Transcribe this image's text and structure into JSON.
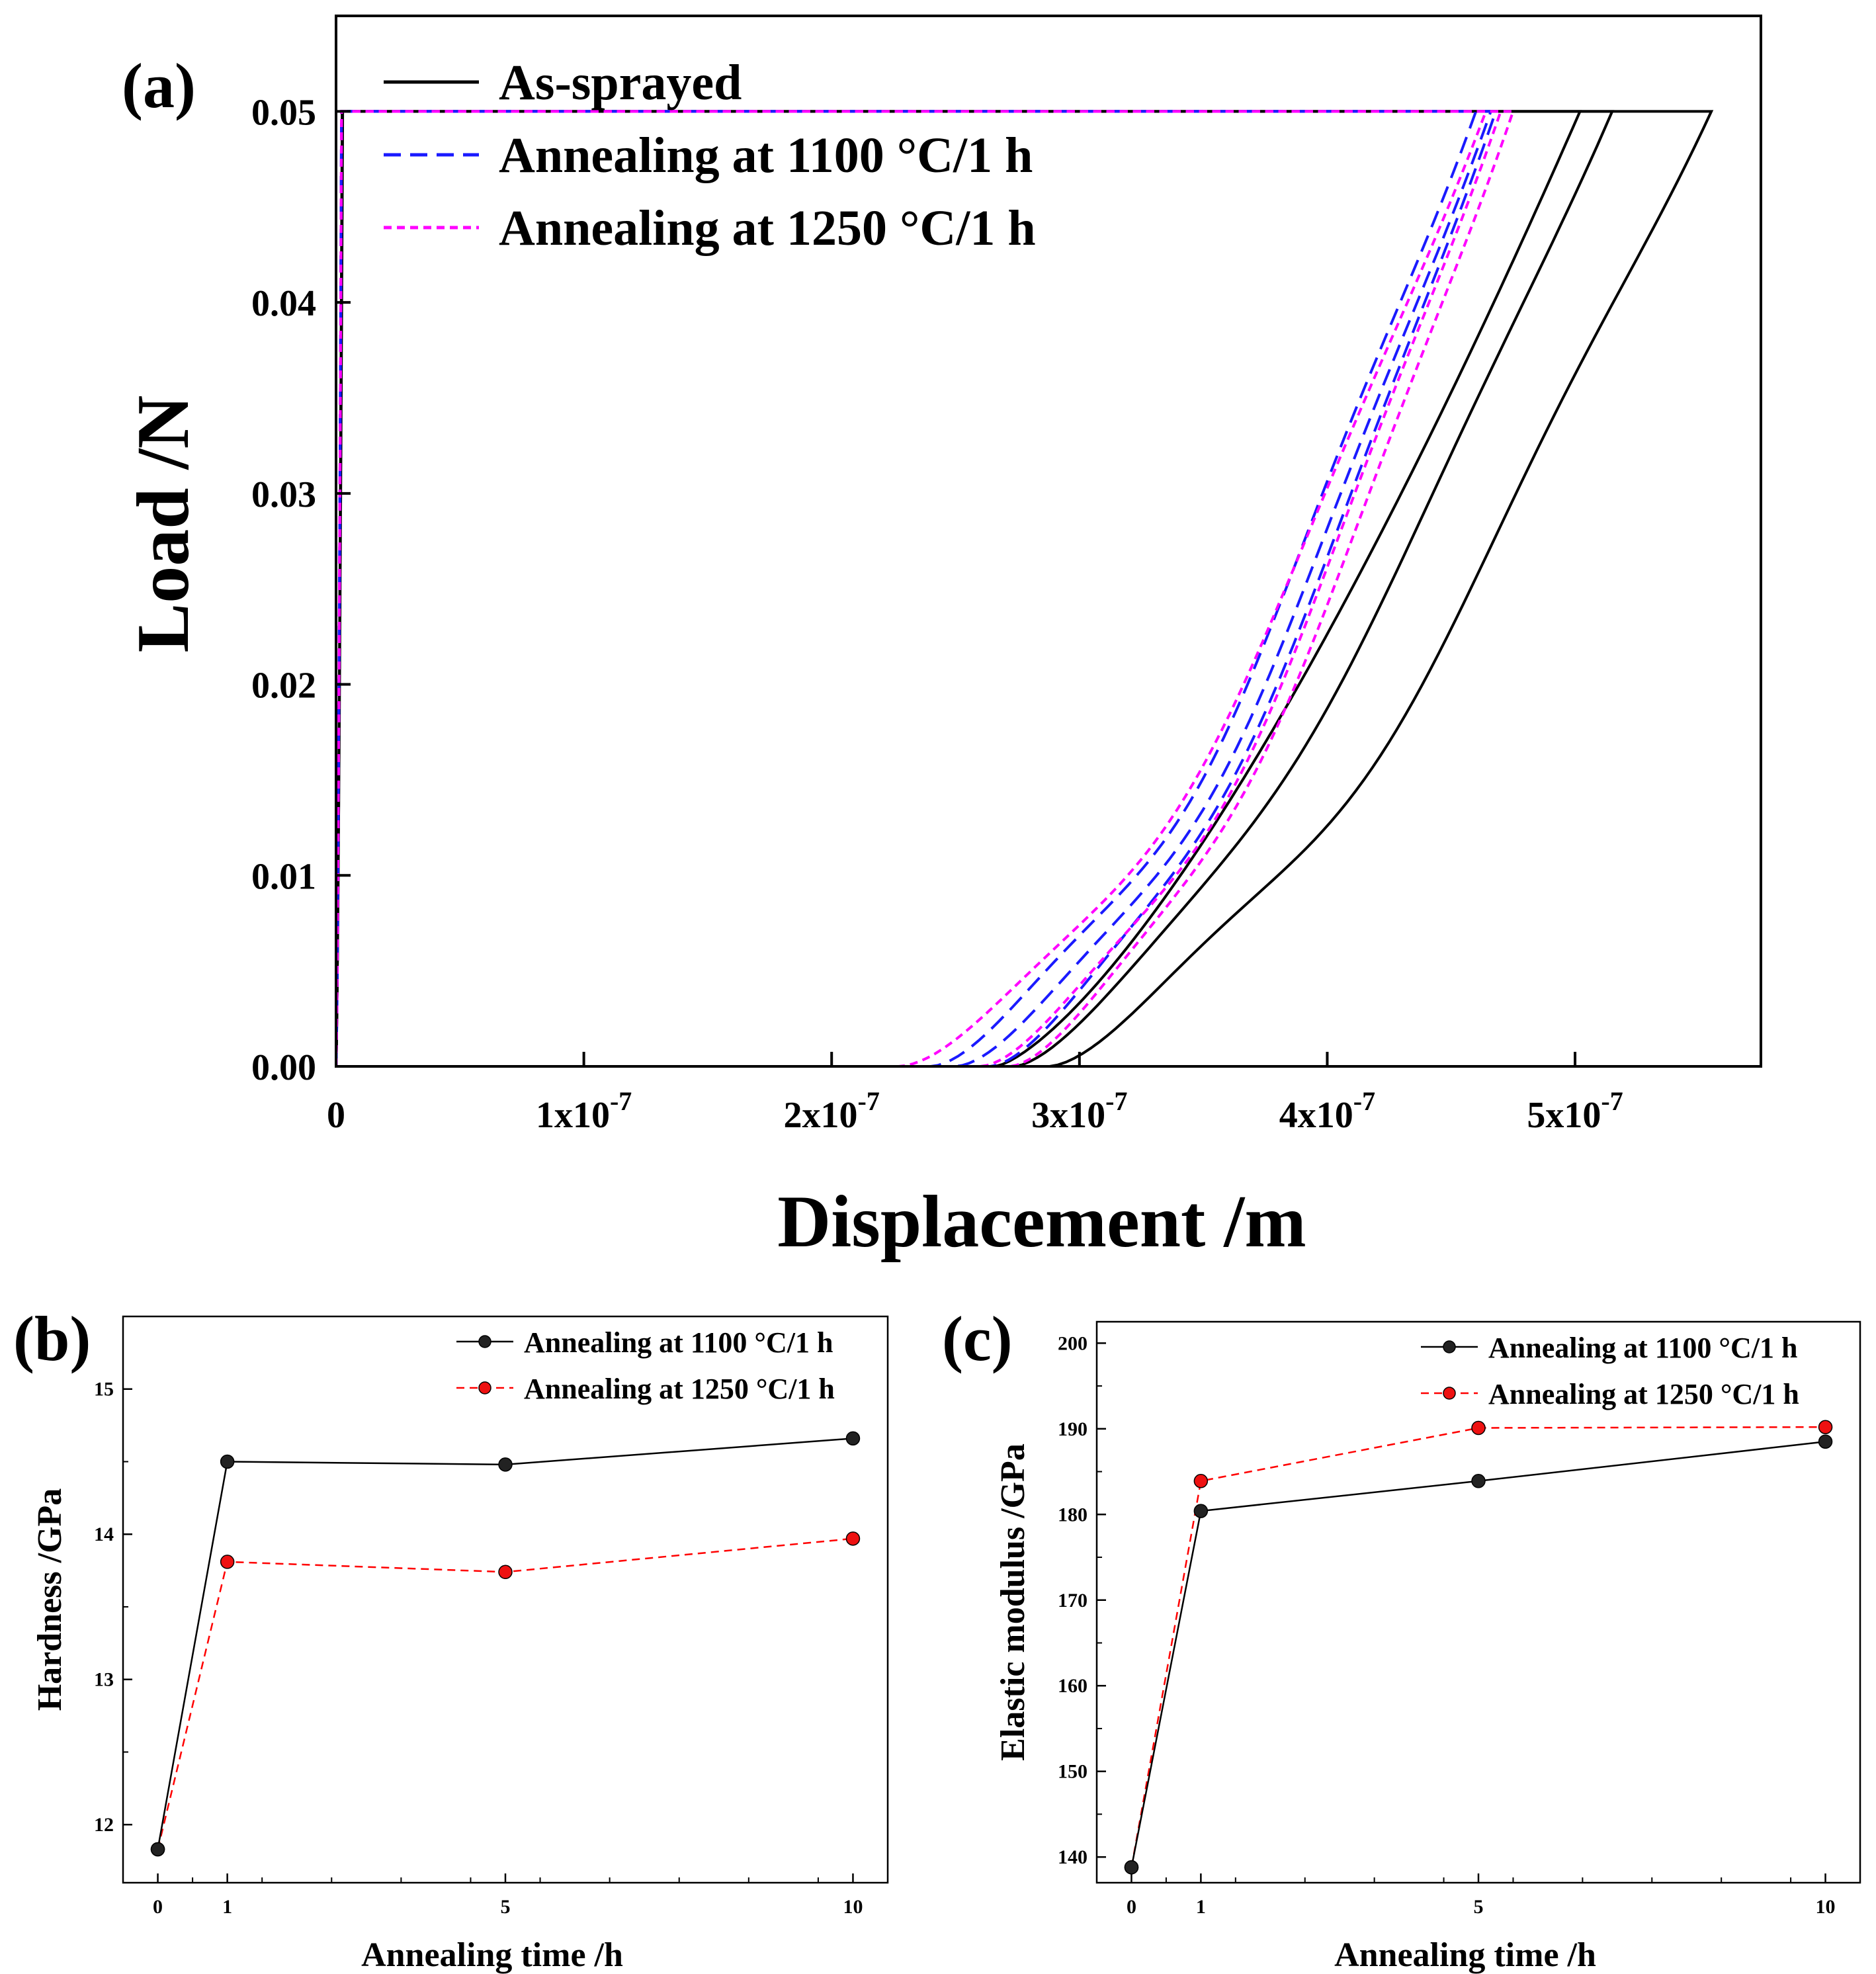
{
  "figure": {
    "panel_labels": [
      "(a)",
      "(b)",
      "(c)"
    ]
  },
  "chart_data": [
    {
      "id": "a",
      "type": "line",
      "panel_label": "(a)",
      "title": "",
      "xlabel": "Displacement  /m",
      "ylabel": "Load  /N",
      "xlim": [
        0,
        5.75e-07
      ],
      "ylim": [
        0,
        0.055
      ],
      "x_ticks": [
        {
          "value": 0,
          "label": "0"
        },
        {
          "value": 1e-07,
          "label": "1x10",
          "exp": "-7"
        },
        {
          "value": 2e-07,
          "label": "2x10",
          "exp": "-7"
        },
        {
          "value": 3e-07,
          "label": "3x10",
          "exp": "-7"
        },
        {
          "value": 4e-07,
          "label": "4x10",
          "exp": "-7"
        },
        {
          "value": 5e-07,
          "label": "5x10",
          "exp": "-7"
        }
      ],
      "y_ticks": [
        {
          "value": 0.0,
          "label": "0.00"
        },
        {
          "value": 0.01,
          "label": "0.01"
        },
        {
          "value": 0.02,
          "label": "0.02"
        },
        {
          "value": 0.03,
          "label": "0.03"
        },
        {
          "value": 0.04,
          "label": "0.04"
        },
        {
          "value": 0.05,
          "label": "0.05"
        }
      ],
      "legend": [
        {
          "label": "As-sprayed",
          "color": "#000000",
          "style": "solid"
        },
        {
          "label": "Annealing at 1100 °C/1 h",
          "color": "#1a1aff",
          "style": "dashed"
        },
        {
          "label": "Annealing at 1250 °C/1 h",
          "color": "#ff00ff",
          "style": "dotted"
        }
      ],
      "legend_position": "top-left",
      "curve_groups": [
        {
          "name": "As-sprayed",
          "color": "#000000",
          "style": "solid",
          "curves": [
            {
              "hmax": 5.55e-07,
              "k": 162000000000,
              "p": 1.46,
              "hf": 2.88e-07,
              "m": 1.5,
              "kink": 0.35
            },
            {
              "hmax": 5.15e-07,
              "k": 179000000000,
              "p": 1.46,
              "hf": 2.74e-07,
              "m": 1.45,
              "kink": 0.2
            },
            {
              "hmax": 5.02e-07,
              "k": 186000000000,
              "p": 1.46,
              "hf": 2.66e-07,
              "m": 1.4,
              "kink": 0.0
            }
          ]
        },
        {
          "name": "Annealing at 1100 °C/1 h",
          "color": "#1a1aff",
          "style": "dashed",
          "curves": [
            {
              "hmax": 4.6e-07,
              "k": 222000000000,
              "p": 1.46,
              "hf": 2.4e-07,
              "m": 1.6,
              "kink": 0.35
            },
            {
              "hmax": 4.66e-07,
              "k": 218000000000,
              "p": 1.46,
              "hf": 2.5e-07,
              "m": 1.6,
              "kink": 0.3
            },
            {
              "hmax": 4.68e-07,
              "k": 216000000000,
              "p": 1.46,
              "hf": 2.64e-07,
              "m": 1.55,
              "kink": 0.25
            }
          ]
        },
        {
          "name": "Annealing at 1250 °C/1 h",
          "color": "#ff00ff",
          "style": "dotted",
          "curves": [
            {
              "hmax": 4.64e-07,
              "k": 220000000000,
              "p": 1.46,
              "hf": 2.27e-07,
              "m": 1.65,
              "kink": 0.3
            },
            {
              "hmax": 4.7e-07,
              "k": 214000000000,
              "p": 1.46,
              "hf": 2.6e-07,
              "m": 1.6,
              "kink": 0.3
            },
            {
              "hmax": 4.75e-07,
              "k": 210000000000,
              "p": 1.46,
              "hf": 2.72e-07,
              "m": 1.55,
              "kink": 0.25
            }
          ]
        }
      ],
      "pmax": 0.05
    },
    {
      "id": "b",
      "type": "line",
      "panel_label": "(b)",
      "title": "",
      "xlabel": "Annealing time  /h",
      "ylabel": "Hardness  /GPa",
      "xlim": [
        -0.5,
        10.5
      ],
      "ylim": [
        11.6,
        15.5
      ],
      "x_ticks": [
        {
          "value": 0,
          "label": "0"
        },
        {
          "value": 1,
          "label": "1"
        },
        {
          "value": 5,
          "label": "5"
        },
        {
          "value": 10,
          "label": "10"
        }
      ],
      "y_ticks": [
        {
          "value": 12,
          "label": "12"
        },
        {
          "value": 13,
          "label": "13"
        },
        {
          "value": 14,
          "label": "14"
        },
        {
          "value": 15,
          "label": "15"
        }
      ],
      "legend_position": "top-right",
      "series": [
        {
          "name": "Annealing at 1100 °C/1 h",
          "color": "#000000",
          "style": "solid",
          "marker_color": "#222222",
          "x": [
            0,
            1,
            5,
            10
          ],
          "values": [
            11.83,
            14.5,
            14.48,
            14.66
          ]
        },
        {
          "name": "Annealing at 1250 °C/1 h",
          "color": "#ff0000",
          "style": "dashed",
          "marker_color": "#ee1111",
          "x": [
            0,
            1,
            5,
            10
          ],
          "values": [
            11.83,
            13.81,
            13.74,
            13.97
          ]
        }
      ]
    },
    {
      "id": "c",
      "type": "line",
      "panel_label": "(c)",
      "title": "",
      "xlabel": "Annealing time  /h",
      "ylabel": "Elastic modulus  /GPa",
      "xlim": [
        -0.5,
        10.5
      ],
      "ylim": [
        137,
        202.5
      ],
      "x_ticks": [
        {
          "value": 0,
          "label": "0"
        },
        {
          "value": 1,
          "label": "1"
        },
        {
          "value": 5,
          "label": "5"
        },
        {
          "value": 10,
          "label": "10"
        }
      ],
      "y_ticks": [
        {
          "value": 140,
          "label": "140"
        },
        {
          "value": 150,
          "label": "150"
        },
        {
          "value": 160,
          "label": "160"
        },
        {
          "value": 170,
          "label": "170"
        },
        {
          "value": 180,
          "label": "180"
        },
        {
          "value": 190,
          "label": "190"
        },
        {
          "value": 200,
          "label": "200"
        }
      ],
      "legend_position": "top-right",
      "series": [
        {
          "name": "Annealing at 1100 °C/1 h",
          "color": "#000000",
          "style": "solid",
          "marker_color": "#222222",
          "x": [
            0,
            1,
            5,
            10
          ],
          "values": [
            138.8,
            180.4,
            183.9,
            188.5
          ]
        },
        {
          "name": "Annealing at 1250 °C/1 h",
          "color": "#ff0000",
          "style": "dashed",
          "marker_color": "#ee1111",
          "x": [
            0,
            1,
            5,
            10
          ],
          "values": [
            138.8,
            183.9,
            190.1,
            190.2
          ]
        }
      ]
    }
  ]
}
